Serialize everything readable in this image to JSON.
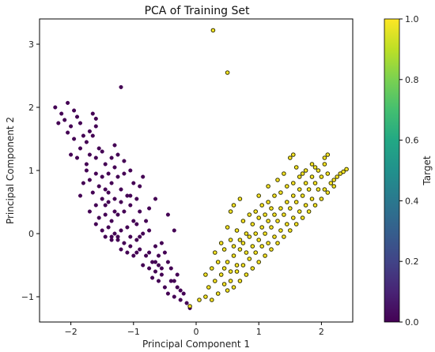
{
  "chart_data": {
    "type": "scatter",
    "title": "PCA of Training Set",
    "xlabel": "Principal Component 1",
    "ylabel": "Principal Component 2",
    "xlim": [
      -2.5,
      2.5
    ],
    "ylim": [
      -1.4,
      3.4
    ],
    "xticks": [
      -2,
      -1,
      0,
      1,
      2
    ],
    "xtick_labels": [
      "−2",
      "−1",
      "0",
      "1",
      "2"
    ],
    "yticks": [
      -1,
      0,
      1,
      2,
      3
    ],
    "ytick_labels": [
      "−1",
      "0",
      "1",
      "2",
      "3"
    ],
    "grid": false,
    "colorbar": {
      "label": "Target",
      "colormap": "viridis",
      "range": [
        0,
        1
      ],
      "ticks": [
        0.0,
        0.2,
        0.4,
        0.6,
        0.8,
        1.0
      ],
      "tick_labels": [
        "0.0",
        "0.2",
        "0.4",
        "0.6",
        "0.8",
        "1.0"
      ]
    },
    "series": [
      {
        "target": 0,
        "color": "#440154",
        "points": [
          [
            -2.25,
            2.0
          ],
          [
            -2.15,
            1.9
          ],
          [
            -2.05,
            2.07
          ],
          [
            -1.95,
            1.95
          ],
          [
            -2.1,
            1.8
          ],
          [
            -2.2,
            1.75
          ],
          [
            -2.0,
            1.7
          ],
          [
            -1.9,
            1.85
          ],
          [
            -1.85,
            1.75
          ],
          [
            -2.05,
            1.6
          ],
          [
            -1.95,
            1.5
          ],
          [
            -1.8,
            1.55
          ],
          [
            -1.75,
            1.45
          ],
          [
            -1.7,
            1.62
          ],
          [
            -1.6,
            1.7
          ],
          [
            -1.65,
            1.55
          ],
          [
            -1.55,
            1.35
          ],
          [
            -1.85,
            1.35
          ],
          [
            -2.0,
            1.25
          ],
          [
            -1.9,
            1.2
          ],
          [
            -1.75,
            1.1
          ],
          [
            -1.6,
            1.2
          ],
          [
            -1.5,
            1.3
          ],
          [
            -1.45,
            1.1
          ],
          [
            -1.35,
            1.2
          ],
          [
            -1.25,
            1.25
          ],
          [
            -1.3,
            1.05
          ],
          [
            -1.4,
            0.95
          ],
          [
            -1.5,
            0.9
          ],
          [
            -1.6,
            0.95
          ],
          [
            -1.7,
            0.85
          ],
          [
            -1.8,
            0.8
          ],
          [
            -1.55,
            0.75
          ],
          [
            -1.45,
            0.7
          ],
          [
            -1.35,
            0.8
          ],
          [
            -1.25,
            0.9
          ],
          [
            -1.15,
            0.95
          ],
          [
            -1.05,
            1.0
          ],
          [
            -1.2,
            0.7
          ],
          [
            -1.1,
            0.6
          ],
          [
            -1.3,
            0.55
          ],
          [
            -1.4,
            0.5
          ],
          [
            -1.5,
            0.55
          ],
          [
            -1.6,
            0.45
          ],
          [
            -1.7,
            0.35
          ],
          [
            -1.55,
            0.25
          ],
          [
            -1.45,
            0.3
          ],
          [
            -1.35,
            0.2
          ],
          [
            -1.25,
            0.3
          ],
          [
            -1.15,
            0.35
          ],
          [
            -1.05,
            0.45
          ],
          [
            -0.95,
            0.55
          ],
          [
            -0.9,
            0.35
          ],
          [
            -1.0,
            0.2
          ],
          [
            -1.1,
            0.1
          ],
          [
            -1.2,
            0.05
          ],
          [
            -1.3,
            0.0
          ],
          [
            -1.4,
            0.1
          ],
          [
            -1.5,
            0.05
          ],
          [
            -1.6,
            0.15
          ],
          [
            -1.45,
            -0.05
          ],
          [
            -1.35,
            -0.1
          ],
          [
            -1.25,
            -0.1
          ],
          [
            -1.15,
            -0.15
          ],
          [
            -1.05,
            -0.2
          ],
          [
            -0.95,
            -0.1
          ],
          [
            -0.85,
            0.0
          ],
          [
            -0.9,
            -0.25
          ],
          [
            -1.0,
            -0.35
          ],
          [
            -1.1,
            -0.3
          ],
          [
            -1.2,
            -0.25
          ],
          [
            -0.8,
            -0.35
          ],
          [
            -0.7,
            -0.45
          ],
          [
            -0.75,
            -0.55
          ],
          [
            -0.85,
            -0.5
          ],
          [
            -0.65,
            -0.6
          ],
          [
            -0.55,
            -0.65
          ],
          [
            -0.6,
            -0.75
          ],
          [
            -0.7,
            -0.7
          ],
          [
            -0.5,
            -0.85
          ],
          [
            -0.45,
            -0.95
          ],
          [
            -0.35,
            -1.0
          ],
          [
            -0.25,
            -1.05
          ],
          [
            -0.3,
            -0.85
          ],
          [
            -0.4,
            -0.75
          ],
          [
            -0.2,
            -0.95
          ],
          [
            -0.15,
            -1.1
          ],
          [
            -0.1,
            -1.18
          ],
          [
            -0.6,
            -0.5
          ],
          [
            -0.5,
            -0.3
          ],
          [
            -0.4,
            -0.55
          ],
          [
            -0.3,
            -0.65
          ],
          [
            -0.95,
            0.15
          ],
          [
            -0.8,
            0.2
          ],
          [
            -0.75,
            0.05
          ],
          [
            -0.65,
            -0.2
          ],
          [
            -0.55,
            -0.15
          ],
          [
            -1.05,
            0.6
          ],
          [
            -0.9,
            0.75
          ],
          [
            -0.85,
            0.9
          ],
          [
            -1.2,
            2.32
          ],
          [
            -1.65,
            1.9
          ],
          [
            -1.6,
            1.82
          ],
          [
            -1.3,
            1.4
          ],
          [
            -1.15,
            1.15
          ],
          [
            -1.0,
            0.8
          ],
          [
            -0.75,
            0.4
          ],
          [
            -0.65,
            0.55
          ],
          [
            -0.45,
            0.3
          ],
          [
            -0.35,
            0.05
          ],
          [
            -1.75,
            1.0
          ],
          [
            -1.65,
            0.65
          ],
          [
            -1.85,
            0.6
          ],
          [
            -1.3,
            0.35
          ],
          [
            -0.9,
            -0.05
          ],
          [
            -0.6,
            -0.35
          ],
          [
            -0.45,
            -0.45
          ],
          [
            -1.4,
            0.65
          ],
          [
            -1.2,
            0.5
          ],
          [
            -1.7,
            1.25
          ],
          [
            -1.45,
            0.45
          ],
          [
            -1.35,
            -0.05
          ],
          [
            -1.25,
            -0.05
          ],
          [
            -1.05,
            -0.05
          ],
          [
            -0.95,
            -0.3
          ],
          [
            -0.75,
            -0.3
          ],
          [
            -0.65,
            -0.45
          ],
          [
            -0.55,
            -0.55
          ],
          [
            -0.35,
            -0.75
          ],
          [
            -0.25,
            -0.9
          ]
        ]
      },
      {
        "target": 1,
        "color": "#fde725",
        "points": [
          [
            0.27,
            3.22
          ],
          [
            0.5,
            2.55
          ],
          [
            -0.1,
            -1.15
          ],
          [
            0.05,
            -1.05
          ],
          [
            0.15,
            -1.0
          ],
          [
            0.25,
            -1.05
          ],
          [
            0.35,
            -0.95
          ],
          [
            0.2,
            -0.85
          ],
          [
            0.3,
            -0.75
          ],
          [
            0.4,
            -0.65
          ],
          [
            0.45,
            -0.8
          ],
          [
            0.55,
            -0.6
          ],
          [
            0.5,
            -0.45
          ],
          [
            0.6,
            -0.35
          ],
          [
            0.65,
            -0.5
          ],
          [
            0.7,
            -0.25
          ],
          [
            0.8,
            -0.3
          ],
          [
            0.75,
            -0.15
          ],
          [
            0.85,
            -0.05
          ],
          [
            0.9,
            -0.2
          ],
          [
            0.95,
            0.0
          ],
          [
            1.0,
            -0.1
          ],
          [
            1.05,
            0.1
          ],
          [
            1.1,
            0.0
          ],
          [
            1.15,
            0.2
          ],
          [
            1.2,
            0.1
          ],
          [
            1.25,
            0.3
          ],
          [
            1.3,
            0.2
          ],
          [
            1.35,
            0.4
          ],
          [
            1.4,
            0.3
          ],
          [
            1.45,
            0.5
          ],
          [
            1.5,
            0.4
          ],
          [
            1.55,
            0.6
          ],
          [
            1.6,
            0.5
          ],
          [
            1.65,
            0.7
          ],
          [
            1.7,
            0.6
          ],
          [
            1.75,
            0.8
          ],
          [
            1.8,
            0.7
          ],
          [
            1.85,
            0.9
          ],
          [
            1.9,
            0.8
          ],
          [
            1.95,
            1.0
          ],
          [
            2.0,
            0.9
          ],
          [
            2.05,
            1.1
          ],
          [
            2.1,
            0.95
          ],
          [
            2.2,
            0.85
          ],
          [
            2.3,
            0.95
          ],
          [
            2.4,
            1.02
          ],
          [
            2.35,
            0.98
          ],
          [
            2.2,
            0.75
          ],
          [
            2.1,
            0.65
          ],
          [
            2.0,
            0.55
          ],
          [
            1.9,
            0.45
          ],
          [
            1.8,
            0.35
          ],
          [
            1.7,
            0.25
          ],
          [
            1.6,
            0.15
          ],
          [
            1.5,
            0.05
          ],
          [
            1.4,
            -0.05
          ],
          [
            1.3,
            -0.15
          ],
          [
            1.2,
            -0.25
          ],
          [
            1.1,
            -0.35
          ],
          [
            1.0,
            -0.45
          ],
          [
            0.9,
            -0.55
          ],
          [
            0.8,
            -0.65
          ],
          [
            0.7,
            -0.75
          ],
          [
            0.6,
            -0.85
          ],
          [
            0.5,
            -0.9
          ],
          [
            0.35,
            -0.45
          ],
          [
            0.45,
            -0.25
          ],
          [
            0.55,
            -0.1
          ],
          [
            0.65,
            0.05
          ],
          [
            0.75,
            0.2
          ],
          [
            0.85,
            0.3
          ],
          [
            0.95,
            0.35
          ],
          [
            1.05,
            0.45
          ],
          [
            1.15,
            0.5
          ],
          [
            1.25,
            0.6
          ],
          [
            1.35,
            0.65
          ],
          [
            1.45,
            0.75
          ],
          [
            1.55,
            0.8
          ],
          [
            1.65,
            0.9
          ],
          [
            1.75,
            1.0
          ],
          [
            1.85,
            1.1
          ],
          [
            1.5,
            1.2
          ],
          [
            1.55,
            1.25
          ],
          [
            2.05,
            1.2
          ],
          [
            2.1,
            1.25
          ],
          [
            1.15,
            0.75
          ],
          [
            0.55,
            0.35
          ],
          [
            0.6,
            0.45
          ],
          [
            0.7,
            0.55
          ],
          [
            0.5,
            0.1
          ],
          [
            0.4,
            -0.15
          ],
          [
            0.3,
            -0.3
          ],
          [
            0.25,
            -0.55
          ],
          [
            0.15,
            -0.65
          ],
          [
            1.0,
            0.6
          ],
          [
            1.3,
            0.85
          ],
          [
            1.4,
            0.95
          ],
          [
            1.6,
            1.05
          ],
          [
            1.95,
            0.7
          ],
          [
            1.85,
            0.55
          ],
          [
            1.75,
            0.45
          ],
          [
            1.65,
            0.35
          ],
          [
            1.55,
            0.25
          ],
          [
            1.45,
            0.15
          ],
          [
            1.35,
            0.05
          ],
          [
            1.25,
            -0.05
          ],
          [
            1.15,
            -0.15
          ],
          [
            1.05,
            -0.2
          ],
          [
            0.95,
            -0.3
          ],
          [
            0.85,
            -0.4
          ],
          [
            0.75,
            -0.5
          ],
          [
            0.65,
            -0.6
          ],
          [
            0.55,
            -0.75
          ],
          [
            2.25,
            0.9
          ],
          [
            2.15,
            0.8
          ],
          [
            2.05,
            0.7
          ],
          [
            0.9,
            0.15
          ],
          [
            1.0,
            0.25
          ],
          [
            1.2,
            0.4
          ],
          [
            1.1,
            0.3
          ],
          [
            0.8,
            0.0
          ],
          [
            0.7,
            -0.1
          ],
          [
            0.6,
            -0.2
          ],
          [
            1.9,
            1.05
          ],
          [
            1.7,
            0.95
          ],
          [
            0.45,
            -0.55
          ]
        ]
      }
    ]
  }
}
